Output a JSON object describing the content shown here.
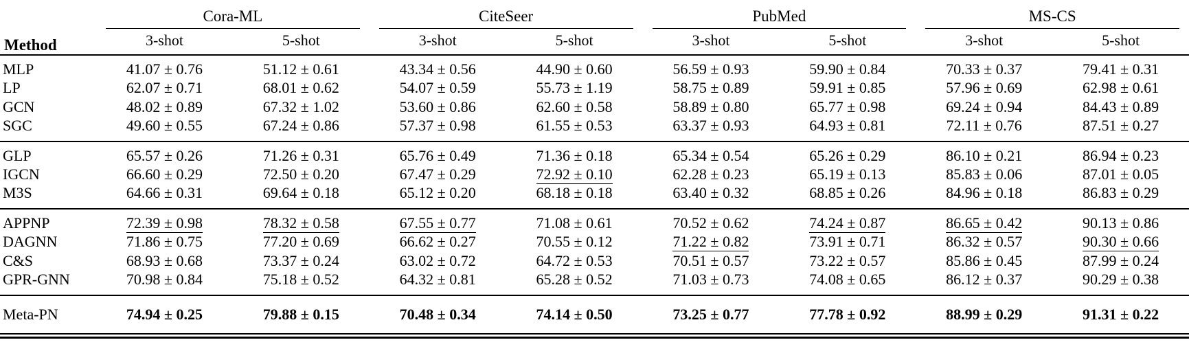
{
  "header": {
    "method": "Method",
    "datasets": [
      "Cora-ML",
      "CiteSeer",
      "PubMed",
      "MS-CS"
    ],
    "shot_labels": [
      "3-shot",
      "5-shot"
    ]
  },
  "table": {
    "columns": [
      "Cora-ML 3-shot",
      "Cora-ML 5-shot",
      "CiteSeer 3-shot",
      "CiteSeer 5-shot",
      "PubMed 3-shot",
      "PubMed 5-shot",
      "MS-CS 3-shot",
      "MS-CS 5-shot"
    ],
    "groups": [
      {
        "rows": [
          {
            "method": "MLP",
            "values": [
              "41.07 ± 0.76",
              "51.12 ± 0.61",
              "43.34 ± 0.56",
              "44.90 ± 0.60",
              "56.59 ± 0.93",
              "59.90 ± 0.84",
              "70.33 ± 0.37",
              "79.41 ± 0.31"
            ],
            "underline": [],
            "bold": false
          },
          {
            "method": "LP",
            "values": [
              "62.07 ± 0.71",
              "68.01 ± 0.62",
              "54.07 ± 0.59",
              "55.73 ± 1.19",
              "58.75 ± 0.89",
              "59.91 ± 0.85",
              "57.96 ± 0.69",
              "62.98 ± 0.61"
            ],
            "underline": [],
            "bold": false
          },
          {
            "method": "GCN",
            "values": [
              "48.02 ± 0.89",
              "67.32 ± 1.02",
              "53.60 ± 0.86",
              "62.60 ± 0.58",
              "58.89 ± 0.80",
              "65.77 ± 0.98",
              "69.24 ± 0.94",
              "84.43 ± 0.89"
            ],
            "underline": [],
            "bold": false
          },
          {
            "method": "SGC",
            "values": [
              "49.60 ± 0.55",
              "67.24 ± 0.86",
              "57.37 ± 0.98",
              "61.55 ± 0.53",
              "63.37 ± 0.93",
              "64.93 ± 0.81",
              "72.11 ± 0.76",
              "87.51 ± 0.27"
            ],
            "underline": [],
            "bold": false
          }
        ]
      },
      {
        "rows": [
          {
            "method": "GLP",
            "values": [
              "65.57 ± 0.26",
              "71.26 ± 0.31",
              "65.76 ± 0.49",
              "71.36 ± 0.18",
              "65.34 ± 0.54",
              "65.26 ± 0.29",
              "86.10 ± 0.21",
              "86.94 ± 0.23"
            ],
            "underline": [],
            "bold": false
          },
          {
            "method": "IGCN",
            "values": [
              "66.60 ± 0.29",
              "72.50 ± 0.20",
              "67.47 ± 0.29",
              "72.92 ± 0.10",
              "62.28 ± 0.23",
              "65.19 ± 0.13",
              "85.83 ± 0.06",
              "87.01 ± 0.05"
            ],
            "underline": [
              3
            ],
            "bold": false
          },
          {
            "method": "M3S",
            "values": [
              "64.66 ± 0.31",
              "69.64 ± 0.18",
              "65.12 ± 0.20",
              "68.18 ± 0.18",
              "63.40 ± 0.32",
              "68.85 ± 0.26",
              "84.96 ± 0.18",
              "86.83 ± 0.29"
            ],
            "underline": [],
            "bold": false
          }
        ]
      },
      {
        "rows": [
          {
            "method": "APPNP",
            "values": [
              "72.39 ± 0.98",
              "78.32 ± 0.58",
              "67.55 ± 0.77",
              "71.08 ± 0.61",
              "70.52 ± 0.62",
              "74.24 ± 0.87",
              "86.65 ± 0.42",
              "90.13 ± 0.86"
            ],
            "underline": [
              0,
              1,
              2,
              5,
              6
            ],
            "bold": false
          },
          {
            "method": "DAGNN",
            "values": [
              "71.86 ± 0.75",
              "77.20 ± 0.69",
              "66.62 ± 0.27",
              "70.55 ± 0.12",
              "71.22 ± 0.82",
              "73.91 ± 0.71",
              "86.32 ± 0.57",
              "90.30 ± 0.66"
            ],
            "underline": [
              4,
              7
            ],
            "bold": false
          },
          {
            "method": "C&S",
            "values": [
              "68.93 ± 0.68",
              "73.37 ± 0.24",
              "63.02 ± 0.72",
              "64.72 ± 0.53",
              "70.51 ± 0.57",
              "73.22 ± 0.57",
              "85.86 ± 0.45",
              "87.99 ± 0.24"
            ],
            "underline": [],
            "bold": false
          },
          {
            "method": "GPR-GNN",
            "values": [
              "70.98 ± 0.84",
              "75.18 ± 0.52",
              "64.32 ± 0.81",
              "65.28 ± 0.52",
              "71.03 ± 0.73",
              "74.08 ± 0.65",
              "86.12 ± 0.37",
              "90.29 ± 0.38"
            ],
            "underline": [],
            "bold": false
          }
        ]
      },
      {
        "meta": true,
        "rows": [
          {
            "method": "Meta-PN",
            "values": [
              "74.94 ± 0.25",
              "79.88 ± 0.15",
              "70.48 ± 0.34",
              "74.14 ± 0.50",
              "73.25 ± 0.77",
              "77.78 ± 0.92",
              "88.99 ± 0.29",
              "91.31 ± 0.22"
            ],
            "underline": [],
            "bold": true
          }
        ]
      }
    ]
  },
  "colors": {
    "text": "#000000",
    "background": "#ffffff",
    "rule": "#000000"
  }
}
